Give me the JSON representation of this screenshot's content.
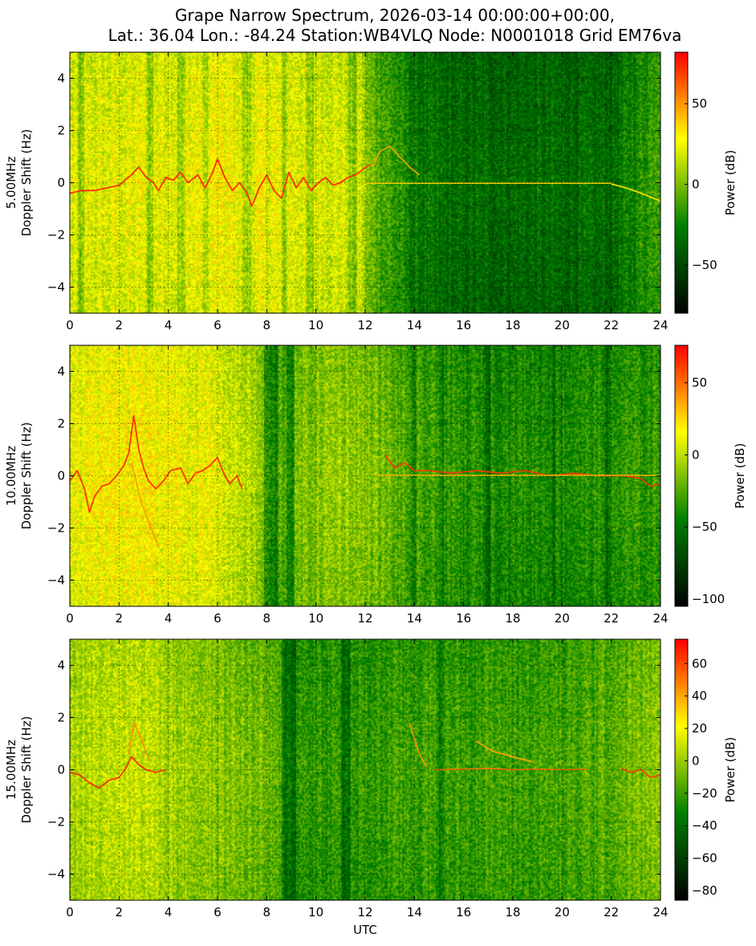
{
  "title_lines": [
    "Grape Narrow Spectrum, 2026-03-14 00:00:00+00:00,",
    "Lat.: 36.04 Lon.: -84.24 Station:WB4VLQ Node: N0001018 Grid EM76va"
  ],
  "colormap": [
    "#000000",
    "#008000",
    "#ffff00",
    "#ff0000"
  ],
  "chart_data": [
    {
      "type": "heatmap",
      "panel": "5.00MHz",
      "ylabel_lines": [
        "5.00MHz",
        "Doppler Shift (Hz)"
      ],
      "xlabel": "",
      "xlim": [
        0,
        24
      ],
      "ylim": [
        -5,
        5
      ],
      "x_ticks": [
        0,
        2,
        4,
        6,
        8,
        10,
        12,
        14,
        16,
        18,
        20,
        22,
        24
      ],
      "y_ticks": [
        -4,
        -2,
        0,
        2,
        4
      ],
      "grid": true,
      "colorbar": {
        "label": "Power (dB)",
        "range": [
          -80,
          82
        ],
        "ticks": [
          -50,
          0,
          50
        ]
      },
      "background": [
        [
          0,
          0.62
        ],
        [
          6,
          0.66
        ],
        [
          11.8,
          0.62
        ],
        [
          12.1,
          0.5
        ],
        [
          13.0,
          0.42
        ],
        [
          14.0,
          0.32
        ],
        [
          15.5,
          0.28
        ],
        [
          22.0,
          0.28
        ],
        [
          23.0,
          0.36
        ],
        [
          24,
          0.45
        ]
      ],
      "dark_bands": [
        [
          0.3,
          0.6
        ],
        [
          3.1,
          3.4
        ],
        [
          4.4,
          4.7
        ],
        [
          5.4,
          5.6
        ],
        [
          7.0,
          7.4
        ],
        [
          8.6,
          8.8
        ],
        [
          9.6,
          9.9
        ],
        [
          11.3,
          11.7
        ]
      ],
      "traces": [
        {
          "level": 0.96,
          "points": [
            [
              0,
              -0.4
            ],
            [
              0.5,
              -0.3
            ],
            [
              1.0,
              -0.3
            ],
            [
              1.5,
              -0.2
            ],
            [
              2.0,
              -0.1
            ],
            [
              2.5,
              0.3
            ],
            [
              2.8,
              0.6
            ],
            [
              3.1,
              0.2
            ],
            [
              3.4,
              0
            ],
            [
              3.6,
              -0.3
            ],
            [
              3.9,
              0.2
            ],
            [
              4.2,
              0.1
            ],
            [
              4.5,
              0.4
            ],
            [
              4.8,
              0
            ],
            [
              5.2,
              0.3
            ],
            [
              5.5,
              -0.2
            ],
            [
              5.8,
              0.4
            ],
            [
              6.0,
              0.9
            ],
            [
              6.3,
              0.2
            ],
            [
              6.6,
              -0.3
            ],
            [
              6.9,
              0
            ],
            [
              7.2,
              -0.4
            ],
            [
              7.4,
              -0.9
            ],
            [
              7.7,
              -0.2
            ],
            [
              8.0,
              0.3
            ],
            [
              8.3,
              -0.3
            ],
            [
              8.6,
              -0.6
            ],
            [
              8.9,
              0.4
            ],
            [
              9.2,
              -0.2
            ],
            [
              9.5,
              0.2
            ],
            [
              9.8,
              -0.3
            ],
            [
              10.1,
              0
            ],
            [
              10.4,
              0.2
            ],
            [
              10.7,
              -0.1
            ],
            [
              11.0,
              0
            ],
            [
              11.3,
              0.2
            ],
            [
              11.6,
              0.3
            ],
            [
              11.9,
              0.5
            ],
            [
              12.2,
              0.7
            ]
          ]
        },
        {
          "level": 0.78,
          "points": [
            [
              12.3,
              0.6
            ],
            [
              12.6,
              1.2
            ],
            [
              13.0,
              1.4
            ],
            [
              13.4,
              1.0
            ],
            [
              13.8,
              0.6
            ],
            [
              14.2,
              0.3
            ]
          ]
        },
        {
          "level": 0.72,
          "points": [
            [
              12.0,
              -0.02
            ],
            [
              16.0,
              -0.02
            ],
            [
              20.0,
              -0.02
            ],
            [
              22.0,
              -0.02
            ]
          ]
        },
        {
          "level": 0.7,
          "points": [
            [
              22.0,
              -0.05
            ],
            [
              22.6,
              -0.2
            ],
            [
              23.2,
              -0.4
            ],
            [
              24,
              -0.7
            ]
          ]
        }
      ]
    },
    {
      "type": "heatmap",
      "panel": "10.00MHz",
      "ylabel_lines": [
        "10.00MHz",
        "Doppler Shift (Hz)"
      ],
      "xlabel": "",
      "xlim": [
        0,
        24
      ],
      "ylim": [
        -5,
        5
      ],
      "x_ticks": [
        0,
        2,
        4,
        6,
        8,
        10,
        12,
        14,
        16,
        18,
        20,
        22,
        24
      ],
      "y_ticks": [
        -4,
        -2,
        0,
        2,
        4
      ],
      "grid": true,
      "colorbar": {
        "label": "Power (dB)",
        "range": [
          -105,
          76
        ],
        "ticks": [
          -100,
          -50,
          0,
          50
        ]
      },
      "background": [
        [
          0,
          0.65
        ],
        [
          2.5,
          0.68
        ],
        [
          6.0,
          0.64
        ],
        [
          7.5,
          0.56
        ],
        [
          8.3,
          0.44
        ],
        [
          9.5,
          0.5
        ],
        [
          11.0,
          0.54
        ],
        [
          12.5,
          0.5
        ],
        [
          13.5,
          0.44
        ],
        [
          16.0,
          0.38
        ],
        [
          20.0,
          0.37
        ],
        [
          24,
          0.4
        ]
      ],
      "dark_bands": [
        [
          7.9,
          8.5
        ],
        [
          8.8,
          9.1
        ],
        [
          13.9,
          14.1
        ],
        [
          15.1,
          15.2
        ],
        [
          16.9,
          17.1
        ],
        [
          19.6,
          19.7
        ],
        [
          21.8,
          22.0
        ]
      ],
      "traces": [
        {
          "level": 0.95,
          "points": [
            [
              0,
              -0.2
            ],
            [
              0.3,
              0.2
            ],
            [
              0.6,
              -0.5
            ],
            [
              0.8,
              -1.4
            ],
            [
              1.0,
              -0.8
            ],
            [
              1.3,
              -0.4
            ],
            [
              1.6,
              -0.3
            ],
            [
              1.9,
              0
            ],
            [
              2.2,
              0.4
            ],
            [
              2.4,
              0.9
            ],
            [
              2.6,
              2.3
            ],
            [
              2.8,
              1.0
            ],
            [
              3.0,
              0.3
            ],
            [
              3.2,
              -0.2
            ],
            [
              3.5,
              -0.5
            ],
            [
              3.8,
              -0.2
            ],
            [
              4.1,
              0.2
            ],
            [
              4.5,
              0.3
            ],
            [
              4.8,
              -0.3
            ],
            [
              5.1,
              0.1
            ],
            [
              5.4,
              0.2
            ],
            [
              5.7,
              0.4
            ],
            [
              6.0,
              0.7
            ],
            [
              6.3,
              0
            ],
            [
              6.5,
              -0.3
            ],
            [
              6.8,
              0
            ],
            [
              7.0,
              -0.5
            ]
          ]
        },
        {
          "level": 0.93,
          "points": [
            [
              12.8,
              0.8
            ],
            [
              13.2,
              0.3
            ],
            [
              13.6,
              0.5
            ],
            [
              14.0,
              0.2
            ],
            [
              14.6,
              0.2
            ],
            [
              15.5,
              0.1
            ],
            [
              16.5,
              0.2
            ],
            [
              17.5,
              0.1
            ],
            [
              18.5,
              0.2
            ],
            [
              19.5,
              0
            ],
            [
              20.5,
              0.1
            ],
            [
              21.5,
              0
            ],
            [
              22.5,
              0
            ],
            [
              23.2,
              -0.1
            ],
            [
              23.6,
              -0.4
            ],
            [
              24,
              -0.3
            ]
          ]
        },
        {
          "level": 0.8,
          "points": [
            [
              2.5,
              0.5
            ],
            [
              2.9,
              -1.0
            ],
            [
              3.3,
              -2.0
            ],
            [
              3.6,
              -2.7
            ]
          ]
        },
        {
          "level": 0.75,
          "points": [
            [
              12.5,
              0.02
            ],
            [
              14.0,
              0.02
            ],
            [
              18.0,
              0.02
            ],
            [
              22.0,
              0.02
            ],
            [
              24,
              0.02
            ]
          ]
        }
      ]
    },
    {
      "type": "heatmap",
      "panel": "15.00MHz",
      "ylabel_lines": [
        "15.00MHz",
        "Doppler Shift (Hz)"
      ],
      "xlabel": "UTC",
      "xlim": [
        0,
        24
      ],
      "ylim": [
        -5,
        5
      ],
      "x_ticks": [
        0,
        2,
        4,
        6,
        8,
        10,
        12,
        14,
        16,
        18,
        20,
        22,
        24
      ],
      "y_ticks": [
        -4,
        -2,
        0,
        2,
        4
      ],
      "grid": true,
      "colorbar": {
        "label": "Power (dB)",
        "range": [
          -86,
          75
        ],
        "ticks": [
          -80,
          -60,
          -40,
          -20,
          0,
          20,
          40,
          60
        ]
      },
      "background": [
        [
          0,
          0.55
        ],
        [
          1.5,
          0.6
        ],
        [
          3.0,
          0.6
        ],
        [
          4.5,
          0.55
        ],
        [
          6.0,
          0.52
        ],
        [
          8.0,
          0.48
        ],
        [
          9.0,
          0.4
        ],
        [
          12.0,
          0.4
        ],
        [
          14.0,
          0.42
        ],
        [
          16.0,
          0.42
        ],
        [
          20.0,
          0.42
        ],
        [
          22.0,
          0.46
        ],
        [
          24,
          0.52
        ]
      ],
      "dark_bands": [
        [
          8.6,
          9.2
        ],
        [
          11.0,
          11.4
        ],
        [
          15.0,
          15.2
        ]
      ],
      "traces": [
        {
          "level": 0.95,
          "points": [
            [
              0,
              -0.1
            ],
            [
              0.4,
              -0.2
            ],
            [
              0.8,
              -0.5
            ],
            [
              1.2,
              -0.7
            ],
            [
              1.6,
              -0.4
            ],
            [
              2.0,
              -0.3
            ],
            [
              2.3,
              0.1
            ],
            [
              2.5,
              0.5
            ],
            [
              2.8,
              0.2
            ],
            [
              3.1,
              0
            ],
            [
              3.5,
              -0.1
            ],
            [
              3.9,
              0
            ]
          ]
        },
        {
          "level": 0.82,
          "points": [
            [
              2.4,
              0.6
            ],
            [
              2.6,
              1.8
            ],
            [
              2.9,
              1.2
            ],
            [
              3.2,
              0.4
            ]
          ]
        },
        {
          "level": 0.8,
          "points": [
            [
              13.8,
              1.8
            ],
            [
              14.2,
              0.6
            ],
            [
              14.5,
              0.1
            ]
          ]
        },
        {
          "level": 0.85,
          "points": [
            [
              14.8,
              0
            ],
            [
              16.0,
              0.02
            ],
            [
              17.0,
              0.05
            ],
            [
              18.0,
              0
            ],
            [
              19.0,
              0.02
            ],
            [
              20.0,
              0
            ],
            [
              21.0,
              0.02
            ]
          ]
        },
        {
          "level": 0.78,
          "points": [
            [
              16.5,
              1.1
            ],
            [
              17.2,
              0.7
            ],
            [
              18.0,
              0.5
            ],
            [
              18.8,
              0.3
            ]
          ]
        },
        {
          "level": 0.93,
          "points": [
            [
              22.4,
              0.05
            ],
            [
              22.8,
              -0.1
            ],
            [
              23.2,
              0
            ],
            [
              23.6,
              -0.3
            ],
            [
              24,
              -0.2
            ]
          ]
        }
      ]
    }
  ]
}
